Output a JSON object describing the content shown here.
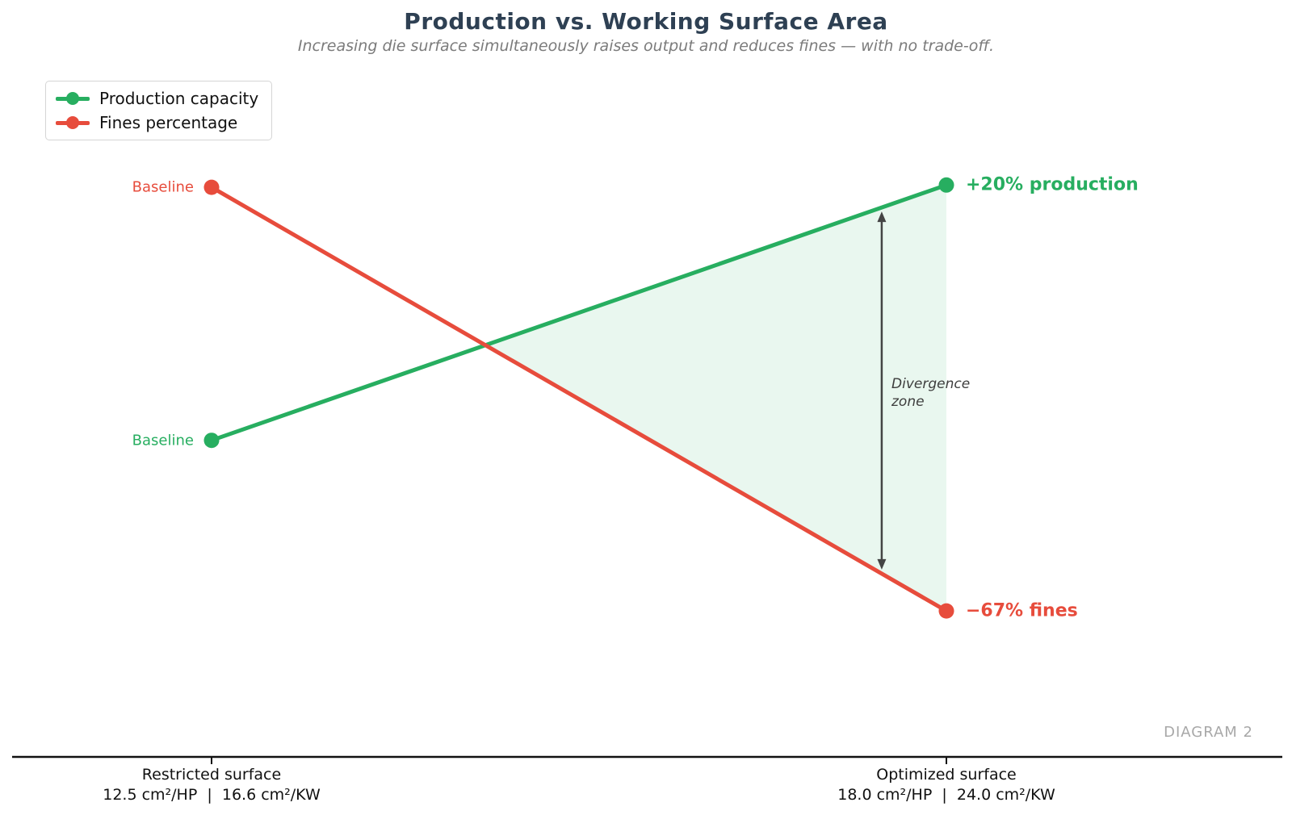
{
  "header": {
    "title": "Production vs. Working Surface Area",
    "subtitle": "Increasing die surface simultaneously raises output and reduces fines — with no trade-off."
  },
  "legend": {
    "items": [
      {
        "label": "Production capacity",
        "color": "#27ae60"
      },
      {
        "label": "Fines percentage",
        "color": "#e74c3c"
      }
    ]
  },
  "chart_data": {
    "type": "line",
    "title": "Production vs. Working Surface Area",
    "categories": [
      "Restricted surface",
      "Optimized surface"
    ],
    "category_sublabels": [
      "12.5 cm²/HP  |  16.6 cm²/KW",
      "18.0 cm²/HP  |  24.0 cm²/KW"
    ],
    "series": [
      {
        "name": "Production capacity",
        "color": "#27ae60",
        "start_label": "Baseline",
        "end_label": "+20% production",
        "values_norm": [
          0.449,
          0.901
        ]
      },
      {
        "name": "Fines percentage",
        "color": "#e74c3c",
        "start_label": "Baseline",
        "end_label": "−67% fines",
        "values_norm": [
          0.897,
          0.147
        ]
      }
    ],
    "divergence": {
      "label_line1": "Divergence",
      "label_line2": "zone",
      "arrow_color": "#444444",
      "fill_color": "rgba(39,174,96,0.10)"
    },
    "axis_color": "#111111",
    "legend_position": "upper-left",
    "grid": false
  },
  "footer": {
    "diagram_label": "DIAGRAM 2"
  }
}
